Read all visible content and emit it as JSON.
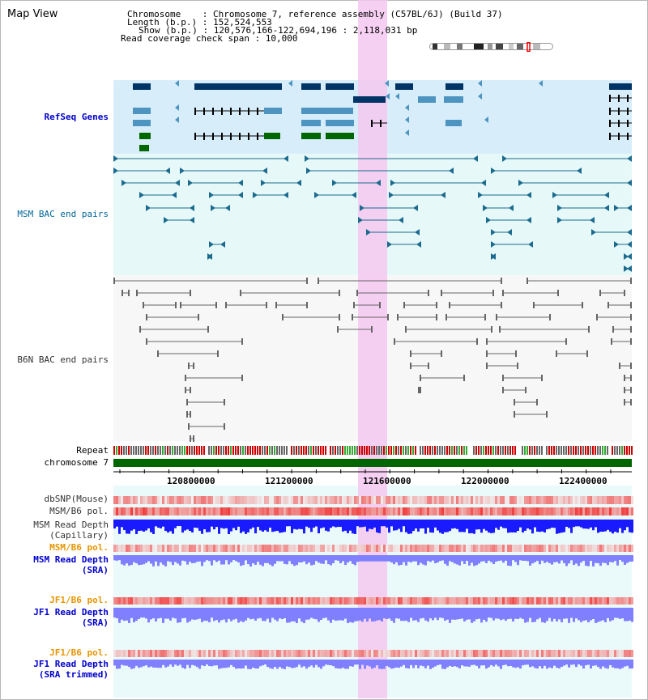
{
  "app": {
    "title": "Map View"
  },
  "header": {
    "lines": [
      {
        "key": "Chromosome",
        "value": "Chromosome 7, reference assembly (C57BL/6J) (Build 37)"
      },
      {
        "key": "Length (b.p.)",
        "value": "152,524,553"
      },
      {
        "key": "Show (b.p.)",
        "value": "120,576,166-122,694,196 : 2,118,031 bp"
      },
      {
        "key": "Read coverage check span",
        "value": "10,000"
      }
    ],
    "line1": "Chromosome    : Chromosome 7, reference assembly (C57BL/6J) (Build 37)",
    "line2": "Length (b.p.) : 152,524,553",
    "line3": "Show (b.p.) : 120,576,166-122,694,196 : 2,118,031 bp",
    "line4": "Read coverage check span : 10,000"
  },
  "tracks": {
    "refseq": "RefSeq Genes",
    "msm_bac": "MSM BAC end pairs",
    "b6n_bac": "B6N BAC end pairs",
    "repeat": "Repeat",
    "chromosome": "chromosome 7",
    "dbsnp": "dbSNP(Mouse)",
    "msm_b6_pol": "MSM/B6 pol.",
    "msm_depth_cap_1": "MSM Read Depth",
    "msm_depth_cap_2": "(Capillary)",
    "msm_b6_pol_2": "MSM/B6 pol.",
    "msm_depth_sra_1": "MSM Read Depth",
    "msm_depth_sra_2": "(SRA)",
    "jf1_b6_pol": "JF1/B6 pol.",
    "jf1_depth_sra_1": "JF1 Read Depth",
    "jf1_depth_sra_2": "(SRA)",
    "jf1_b6_pol_2": "JF1/B6 pol.",
    "jf1_depth_trim_1": "JF1 Read Depth",
    "jf1_depth_trim_2": "(SRA trimmed)"
  },
  "axis": {
    "ticks": [
      "120800000",
      "121200000",
      "121600000",
      "122000000",
      "122400000"
    ]
  },
  "colors": {
    "refseq_bg": "#d7eefa",
    "bac_bg": "#e6f8f8",
    "highlight": "#f5c8f0",
    "gene_dark": "#003366",
    "gene_light": "#4d94c0",
    "gene_green": "#006600",
    "msm_bac": "#1b6b8f",
    "b6n_bac": "#666666",
    "chromosome_bar": "#006600",
    "depth_capillary": "#1a1aff",
    "depth_sra": "#8080ff"
  }
}
